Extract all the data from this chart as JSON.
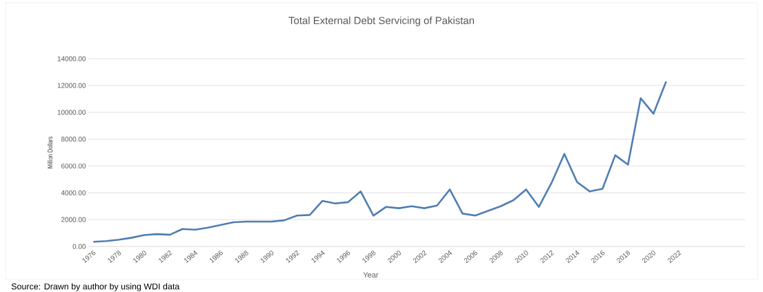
{
  "chart_data": {
    "type": "line",
    "title": "Total External Debt Servicing of Pakistan",
    "xlabel": "Year",
    "ylabel": "Million Dollars",
    "annotations": [
      "Source: Drawn by author by using WDI data"
    ],
    "x": [
      1976,
      1977,
      1978,
      1979,
      1980,
      1981,
      1982,
      1983,
      1984,
      1985,
      1986,
      1987,
      1988,
      1989,
      1990,
      1991,
      1992,
      1993,
      1994,
      1995,
      1996,
      1997,
      1998,
      1999,
      2000,
      2001,
      2002,
      2003,
      2004,
      2005,
      2006,
      2007,
      2008,
      2009,
      2010,
      2011,
      2012,
      2013,
      2014,
      2015,
      2016,
      2017,
      2018,
      2019,
      2020,
      2021
    ],
    "series": [
      {
        "color": "#4f7db3",
        "values": [
          350,
          400,
          500,
          650,
          850,
          920,
          870,
          1300,
          1250,
          1400,
          1600,
          1800,
          1850,
          1850,
          1850,
          1950,
          2300,
          2350,
          3400,
          3200,
          3300,
          4100,
          2300,
          2950,
          2850,
          3000,
          2850,
          3050,
          4250,
          2450,
          2300,
          2650,
          3000,
          3450,
          4250,
          2950,
          4750,
          6900,
          4800,
          4100,
          4300,
          6800,
          6100,
          11050,
          9900,
          12300
        ]
      }
    ],
    "xlim": [
      1975.6,
      2027.2
    ],
    "xticks": [
      1976,
      1978,
      1980,
      1982,
      1984,
      1986,
      1988,
      1990,
      1992,
      1994,
      1996,
      1998,
      2000,
      2002,
      2004,
      2006,
      2008,
      2010,
      2012,
      2014,
      2016,
      2018,
      2020,
      2022
    ],
    "ylim": [
      0,
      14000
    ],
    "yticks": [
      {
        "value": 0,
        "label": "0.00"
      },
      {
        "value": 2000,
        "label": "2000.00"
      },
      {
        "value": 4000,
        "label": "4000.00"
      },
      {
        "value": 6000,
        "label": "6000.00"
      },
      {
        "value": 8000,
        "label": "8000.00"
      },
      {
        "value": 10000,
        "label": "10000.00"
      },
      {
        "value": 12000,
        "label": "12000.00"
      },
      {
        "value": 14000,
        "label": "14000.00"
      }
    ],
    "grid": "y",
    "marker": "none",
    "line_style": "solid"
  }
}
